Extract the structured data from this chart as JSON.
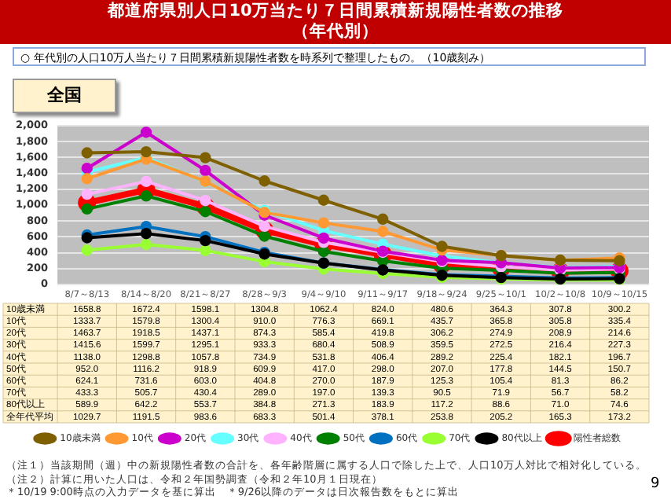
{
  "chart_data": {
    "type": "line",
    "title": "都道府県別人口10万当たり７日間累積新規陽性者数の推移（年代別）",
    "subtitle": "○ 年代別の人口10万人当たり７日間累積新規陽性者数を時系列で整理したもの。（10歳刻み）",
    "categories": [
      "8/7～8/13",
      "8/14～8/20",
      "8/21～8/27",
      "8/28～9/3",
      "9/4～9/10",
      "9/11～9/17",
      "9/18～9/24",
      "9/25～10/1",
      "10/2～10/8",
      "10/9～10/15"
    ],
    "series": [
      {
        "name": "10歳未満",
        "color": "#7f6000",
        "values": [
          1658.8,
          1672.4,
          1598.1,
          1304.8,
          1062.4,
          824.0,
          480.6,
          364.3,
          307.8,
          300.2
        ],
        "value_labels": [
          "1658.8",
          "1672.4",
          "1598.1",
          "1304.8",
          "1062.4",
          "824.0",
          "480.6",
          "364.3",
          "307.8",
          "300.2"
        ]
      },
      {
        "name": "10代",
        "color": "#ff9933",
        "values": [
          1333.7,
          1579.8,
          1300.4,
          910.0,
          776.3,
          669.1,
          435.7,
          365.8,
          305.8,
          335.4
        ],
        "value_labels": [
          "1333.7",
          "1579.8",
          "1300.4",
          "910.0",
          "776.3",
          "669.1",
          "435.7",
          "365.8",
          "305.8",
          "335.4"
        ]
      },
      {
        "name": "20代",
        "color": "#cc00cc",
        "values": [
          1463.7,
          1918.5,
          1437.1,
          874.3,
          585.4,
          419.8,
          306.2,
          274.9,
          208.9,
          214.6
        ],
        "value_labels": [
          "1463.7",
          "1918.5",
          "1437.1",
          "874.3",
          "585.4",
          "419.8",
          "306.2",
          "274.9",
          "208.9",
          "214.6"
        ]
      },
      {
        "name": "30代",
        "color": "#66ffff",
        "values": [
          1415.6,
          1599.7,
          1295.1,
          933.3,
          680.4,
          508.9,
          359.5,
          272.5,
          216.4,
          227.3
        ],
        "value_labels": [
          "1415.6",
          "1599.7",
          "1295.1",
          "933.3",
          "680.4",
          "508.9",
          "359.5",
          "272.5",
          "216.4",
          "227.3"
        ]
      },
      {
        "name": "40代",
        "color": "#ffb3ff",
        "values": [
          1138.0,
          1298.8,
          1057.8,
          734.9,
          531.8,
          406.4,
          289.2,
          225.4,
          182.1,
          196.7
        ],
        "value_labels": [
          "1138.0",
          "1298.8",
          "1057.8",
          "734.9",
          "531.8",
          "406.4",
          "289.2",
          "225.4",
          "182.1",
          "196.7"
        ]
      },
      {
        "name": "50代",
        "color": "#008000",
        "values": [
          952.0,
          1116.2,
          918.9,
          609.9,
          417.0,
          298.0,
          207.0,
          177.8,
          144.5,
          150.7
        ],
        "value_labels": [
          "952.0",
          "1116.2",
          "918.9",
          "609.9",
          "417.0",
          "298.0",
          "207.0",
          "177.8",
          "144.5",
          "150.7"
        ]
      },
      {
        "name": "60代",
        "color": "#0070c0",
        "values": [
          624.1,
          731.6,
          603.0,
          404.8,
          270.0,
          187.9,
          125.3,
          105.4,
          81.3,
          86.2
        ],
        "value_labels": [
          "624.1",
          "731.6",
          "603.0",
          "404.8",
          "270.0",
          "187.9",
          "125.3",
          "105.4",
          "81.3",
          "86.2"
        ]
      },
      {
        "name": "70代",
        "color": "#99ff33",
        "values": [
          433.3,
          505.7,
          430.4,
          289.0,
          197.0,
          139.3,
          90.5,
          71.9,
          56.7,
          58.2
        ],
        "value_labels": [
          "433.3",
          "505.7",
          "430.4",
          "289.0",
          "197.0",
          "139.3",
          "90.5",
          "71.9",
          "56.7",
          "58.2"
        ]
      },
      {
        "name": "80代以上",
        "color": "#000000",
        "values": [
          589.9,
          642.2,
          553.7,
          384.8,
          271.3,
          183.9,
          117.2,
          88.6,
          71.0,
          74.6
        ],
        "value_labels": [
          "589.9",
          "642.2",
          "553.7",
          "384.8",
          "271.3",
          "183.9",
          "117.2",
          "88.6",
          "71.0",
          "74.6"
        ]
      },
      {
        "name": "陽性者総数",
        "color": "#ff0000",
        "values": [
          1029.7,
          1191.5,
          983.6,
          683.3,
          501.4,
          378.1,
          253.8,
          205.2,
          165.3,
          173.2
        ],
        "value_labels": [
          "1029.7",
          "1191.5",
          "983.6",
          "683.3",
          "501.4",
          "378.1",
          "253.8",
          "205.2",
          "165.3",
          "173.2"
        ]
      }
    ],
    "ylim": [
      0,
      2000
    ],
    "yticks": [
      0,
      200,
      400,
      600,
      800,
      {
        "value": 1000,
        "label": "1,000"
      },
      {
        "value": 1200,
        "label": "1,200"
      },
      {
        "value": 1400,
        "label": "1,400"
      },
      {
        "value": 1600,
        "label": "1,600"
      },
      {
        "value": 1800,
        "label": "1,800"
      },
      {
        "value": 2000,
        "label": "2,000"
      }
    ],
    "grid": "y",
    "legend": "bottom",
    "marker": "circle",
    "line_style": "solid",
    "annotations": [
      "全年代平均",
      "全国",
      "（注１）当該期間（週）中の新規陽性者数の合計を、各年齢階層に属する人口で除した上で、人口10万人対比で相対化している。",
      "（注２）計算に用いた人口は、令和２年国勢調査（令和２年10月１日現在）",
      "＊10/19 9:00時点の入力データを基に算出　＊9/26以降のデータは日次報告数をもとに算出",
      "9"
    ]
  }
}
